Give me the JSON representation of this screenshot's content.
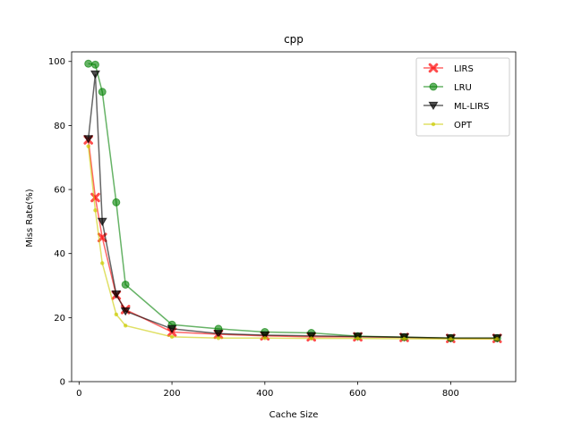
{
  "chart_data": {
    "type": "line",
    "title": "cpp",
    "xlabel": "Cache Size",
    "ylabel": "Miss Rate(%)",
    "xlim": [
      -16,
      940
    ],
    "ylim": [
      0,
      103
    ],
    "xticks": [
      0,
      200,
      400,
      600,
      800
    ],
    "yticks": [
      0,
      20,
      40,
      60,
      80,
      100
    ],
    "grid": false,
    "legend_position": "top-right",
    "x": [
      20,
      35,
      50,
      80,
      100,
      200,
      300,
      400,
      500,
      600,
      700,
      800,
      900
    ],
    "series": [
      {
        "name": "LIRS",
        "color": "#ff0000",
        "marker": "X",
        "values": [
          75.5,
          57.5,
          45,
          27,
          22.5,
          15.5,
          14.8,
          14.3,
          14,
          14,
          13.8,
          13.5,
          13.5
        ]
      },
      {
        "name": "LRU",
        "color": "#008000",
        "marker": "o",
        "values": [
          99.3,
          99,
          90.5,
          56,
          30.3,
          17.8,
          16.5,
          15.5,
          15.2,
          14.2,
          13.9,
          13.6,
          13.6
        ]
      },
      {
        "name": "ML-LIRS",
        "color": "#000000",
        "marker": "v",
        "values": [
          75.8,
          96,
          50,
          27.3,
          22,
          16.5,
          15,
          14.5,
          14.3,
          14.1,
          13.9,
          13.6,
          13.6
        ]
      },
      {
        "name": "OPT",
        "color": "#cccc00",
        "marker": ".",
        "values": [
          73.5,
          53.5,
          37,
          21,
          17.5,
          14,
          13.6,
          13.6,
          13.5,
          13.5,
          13.4,
          13.3,
          13.3
        ]
      }
    ]
  }
}
